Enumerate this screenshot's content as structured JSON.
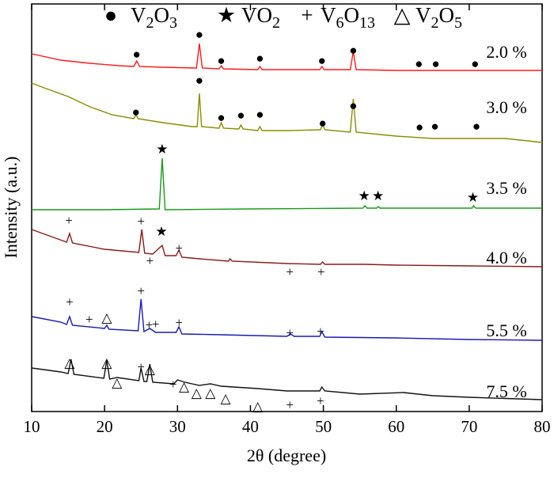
{
  "chart_data": {
    "type": "line",
    "xlabel": "2θ (degree)",
    "ylabel": "Intensity (a.u.)",
    "xlim": [
      10,
      80
    ],
    "xticks": [
      10,
      20,
      30,
      40,
      50,
      60,
      70,
      80
    ],
    "ylim": [
      0,
      103
    ],
    "legend": [
      {
        "symbol": "●",
        "name_parts": [
          "V",
          "2",
          "O",
          "3"
        ]
      },
      {
        "symbol": "★",
        "name_parts": [
          "VO",
          "2"
        ]
      },
      {
        "symbol": "+",
        "name_parts": [
          "V",
          "6",
          "O",
          "13"
        ]
      },
      {
        "symbol": "△",
        "name_parts": [
          "V",
          "2",
          "O",
          "5"
        ]
      }
    ],
    "series": [
      {
        "name": "2.0 %",
        "color": "#ff1a1a",
        "x": [
          10,
          14,
          18,
          22,
          24,
          24.4,
          24.8,
          28,
          32.6,
          33,
          33.4,
          35.7,
          36,
          36.3,
          41,
          41.3,
          41.6,
          45,
          49.5,
          49.8,
          50.1,
          53.7,
          54.1,
          54.5,
          60,
          65,
          70,
          75,
          80
        ],
        "values": [
          90.4,
          88.8,
          88,
          87.4,
          87.2,
          88.6,
          87.2,
          87,
          86.8,
          93,
          86.8,
          86.6,
          87.4,
          86.6,
          86.4,
          87.2,
          86.4,
          86.4,
          86.4,
          87.2,
          86.4,
          86.4,
          91,
          86.4,
          86.2,
          86.2,
          86.2,
          86.2,
          86.2
        ],
        "markers": [
          {
            "symbol": "●",
            "x": 24.4,
            "y": 90
          },
          {
            "symbol": "●",
            "x": 33,
            "y": 95
          },
          {
            "symbol": "●",
            "x": 36,
            "y": 88.4
          },
          {
            "symbol": "●",
            "x": 41.3,
            "y": 89
          },
          {
            "symbol": "●",
            "x": 49.8,
            "y": 88.4
          },
          {
            "symbol": "●",
            "x": 54.1,
            "y": 91
          },
          {
            "symbol": "●",
            "x": 63.1,
            "y": 87.6
          },
          {
            "symbol": "●",
            "x": 65.4,
            "y": 87.6
          },
          {
            "symbol": "●",
            "x": 70.8,
            "y": 87.6
          }
        ]
      },
      {
        "name": "3.0 %",
        "color": "#8c8c00",
        "x": [
          10,
          12,
          15,
          18,
          21,
          24,
          24.3,
          24.6,
          28,
          32,
          32.7,
          33,
          33.3,
          35.7,
          36,
          36.3,
          38.4,
          38.7,
          39,
          41,
          41.3,
          41.6,
          45,
          49.6,
          49.9,
          50.2,
          53.7,
          54.1,
          54.5,
          60,
          65,
          71,
          75,
          80
        ],
        "values": [
          83,
          81.6,
          79.6,
          77,
          75,
          74,
          75,
          74,
          73,
          72,
          72,
          80.4,
          72,
          71.6,
          73,
          71.6,
          71.4,
          72.4,
          71.4,
          71,
          72,
          71,
          71,
          71.2,
          72.6,
          71.2,
          70.6,
          79,
          70.6,
          69.6,
          69,
          69,
          69,
          68
        ],
        "markers": [
          {
            "symbol": "●",
            "x": 24.3,
            "y": 75.4
          },
          {
            "symbol": "●",
            "x": 33,
            "y": 83.4
          },
          {
            "symbol": "●",
            "x": 36,
            "y": 74
          },
          {
            "symbol": "●",
            "x": 38.7,
            "y": 74.6
          },
          {
            "symbol": "●",
            "x": 41.3,
            "y": 74.8
          },
          {
            "symbol": "●",
            "x": 49.9,
            "y": 72.6
          },
          {
            "symbol": "●",
            "x": 54.1,
            "y": 77
          },
          {
            "symbol": "●",
            "x": 63.2,
            "y": 71.6
          },
          {
            "symbol": "●",
            "x": 65.3,
            "y": 71.8
          },
          {
            "symbol": "●",
            "x": 71,
            "y": 71.8
          }
        ]
      },
      {
        "name": "3.5 %",
        "color": "#1a9a1a",
        "x": [
          10,
          20,
          27.5,
          27.9,
          28.3,
          40,
          55.4,
          55.7,
          56,
          57.3,
          57.5,
          57.8,
          65,
          70.4,
          70.6,
          70.9,
          80
        ],
        "values": [
          51,
          51,
          51.2,
          64,
          51,
          51.2,
          51.4,
          52,
          51.4,
          51.4,
          51.8,
          51.4,
          51.4,
          51.4,
          52,
          51.4,
          51.4
        ],
        "markers": [
          {
            "symbol": "★",
            "x": 27.9,
            "y": 66
          },
          {
            "symbol": "★",
            "x": 55.6,
            "y": 54.2
          },
          {
            "symbol": "★",
            "x": 57.5,
            "y": 54.2
          },
          {
            "symbol": "★",
            "x": 70.5,
            "y": 53.8
          }
        ]
      },
      {
        "name": "4.0 %",
        "color": "#8b1a1a",
        "x": [
          10,
          13,
          14.8,
          15.2,
          15.6,
          20,
          24.7,
          25.1,
          25.5,
          26.6,
          27.9,
          28.3,
          29.8,
          30.2,
          30.6,
          33,
          37,
          37.2,
          37.5,
          45,
          49.6,
          49.9,
          50.2,
          55.7,
          60,
          70,
          80
        ],
        "values": [
          46,
          44,
          42.8,
          45,
          42.6,
          41,
          40.2,
          46,
          40,
          39.8,
          42,
          39.4,
          39.4,
          40.8,
          39,
          38.6,
          38,
          38.6,
          38,
          37.4,
          37.2,
          37.8,
          37.2,
          37.2,
          37,
          36.8,
          36.6
        ],
        "markers": [
          {
            "symbol": "+",
            "x": 15.1,
            "y": 48
          },
          {
            "symbol": "+",
            "x": 25,
            "y": 47.8
          },
          {
            "symbol": "+",
            "x": 26.2,
            "y": 37.8
          },
          {
            "symbol": "★",
            "x": 27.8,
            "y": 45.2
          },
          {
            "symbol": "+",
            "x": 30.2,
            "y": 41
          },
          {
            "symbol": "+",
            "x": 45.4,
            "y": 35
          },
          {
            "symbol": "+",
            "x": 49.7,
            "y": 35
          }
        ]
      },
      {
        "name": "5.5 %",
        "color": "#1a1ab4",
        "x": [
          10,
          14,
          14.8,
          15.2,
          15.6,
          20,
          20.3,
          20.6,
          24.6,
          25,
          25.4,
          26.2,
          27,
          29.8,
          30.2,
          30.6,
          36,
          45,
          45.5,
          46,
          49.5,
          49.8,
          50.2,
          60,
          70,
          80
        ],
        "values": [
          24,
          22.6,
          22,
          24,
          21.8,
          21,
          21.8,
          20.8,
          20.4,
          28.4,
          20.2,
          21,
          20,
          20,
          21.4,
          19.6,
          19.4,
          19,
          19.6,
          19,
          19,
          20.2,
          18.8,
          18.6,
          18.2,
          18
        ],
        "markers": [
          {
            "symbol": "+",
            "x": 15.2,
            "y": 27.4
          },
          {
            "symbol": "+",
            "x": 17.9,
            "y": 23
          },
          {
            "symbol": "△",
            "x": 20.3,
            "y": 23.4
          },
          {
            "symbol": "+",
            "x": 25,
            "y": 30.2
          },
          {
            "symbol": "+",
            "x": 26.1,
            "y": 21.6
          },
          {
            "symbol": "+",
            "x": 27,
            "y": 21.8
          },
          {
            "symbol": "+",
            "x": 30.2,
            "y": 22.2
          },
          {
            "symbol": "+",
            "x": 45.4,
            "y": 19.6
          },
          {
            "symbol": "+",
            "x": 49.6,
            "y": 20
          }
        ]
      },
      {
        "name": "7.5 %",
        "color": "#111111",
        "x": [
          10,
          14,
          15,
          15.4,
          15.8,
          19.9,
          20.3,
          20.7,
          21.7,
          24.7,
          25,
          25.4,
          25.8,
          26.2,
          26.6,
          29.5,
          30,
          31,
          33,
          34.5,
          36,
          41,
          45,
          49.5,
          49.8,
          50.2,
          55,
          61,
          65,
          70,
          80
        ],
        "values": [
          11,
          10,
          9.6,
          13.2,
          9.4,
          8.4,
          13,
          8.2,
          8.6,
          7.8,
          11,
          7.6,
          7.6,
          12,
          7.4,
          7,
          8,
          7.4,
          6.6,
          7,
          6.4,
          5.8,
          5.2,
          5.2,
          6.2,
          5.2,
          4.4,
          4.8,
          4,
          3.6,
          3
        ],
        "markers": [
          {
            "symbol": "△",
            "x": 15.2,
            "y": 12
          },
          {
            "symbol": "△",
            "x": 20.3,
            "y": 12
          },
          {
            "symbol": "△",
            "x": 21.7,
            "y": 7
          },
          {
            "symbol": "+",
            "x": 25,
            "y": 11
          },
          {
            "symbol": "△",
            "x": 26.2,
            "y": 10.4
          },
          {
            "symbol": "+",
            "x": 29.4,
            "y": 6.6
          },
          {
            "symbol": "△",
            "x": 30.9,
            "y": 6
          },
          {
            "symbol": "△",
            "x": 32.6,
            "y": 4.4
          },
          {
            "symbol": "△",
            "x": 34.5,
            "y": 4.4
          },
          {
            "symbol": "△",
            "x": 36.6,
            "y": 3
          },
          {
            "symbol": "△",
            "x": 41,
            "y": 1
          },
          {
            "symbol": "+",
            "x": 45.4,
            "y": 1.4
          },
          {
            "symbol": "+",
            "x": 49.6,
            "y": 2.4
          }
        ]
      }
    ]
  }
}
